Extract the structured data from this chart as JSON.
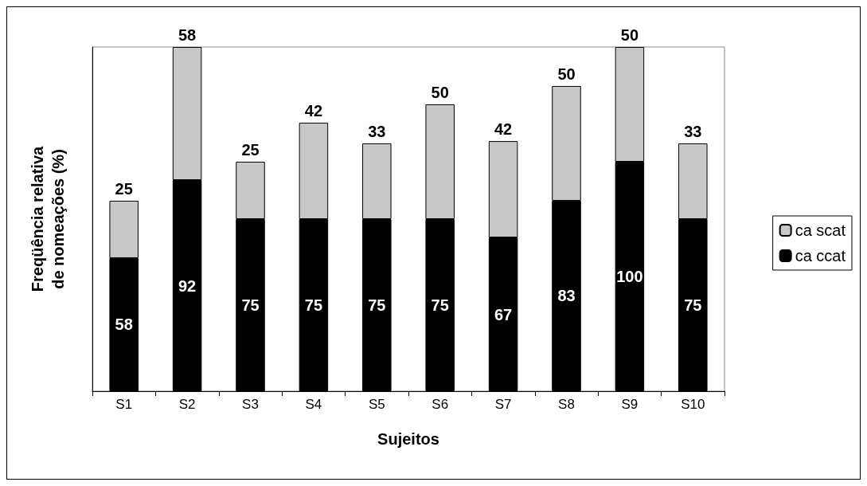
{
  "chart_data": {
    "type": "bar",
    "stacked": true,
    "xlabel": "Sujeitos",
    "ylabel": "Freqüência relativa\nde nomeações (%)",
    "categories": [
      "S1",
      "S2",
      "S3",
      "S4",
      "S5",
      "S6",
      "S7",
      "S8",
      "S9",
      "S10"
    ],
    "series": [
      {
        "name": "ca ccat",
        "color": "#000000",
        "values": [
          58,
          92,
          75,
          75,
          75,
          75,
          67,
          83,
          100,
          75
        ]
      },
      {
        "name": "ca scat",
        "color": "#c8c8c8",
        "values": [
          25,
          58,
          25,
          42,
          33,
          50,
          42,
          50,
          50,
          33
        ]
      }
    ],
    "data_labels": true,
    "legend": "right",
    "grid": false
  }
}
